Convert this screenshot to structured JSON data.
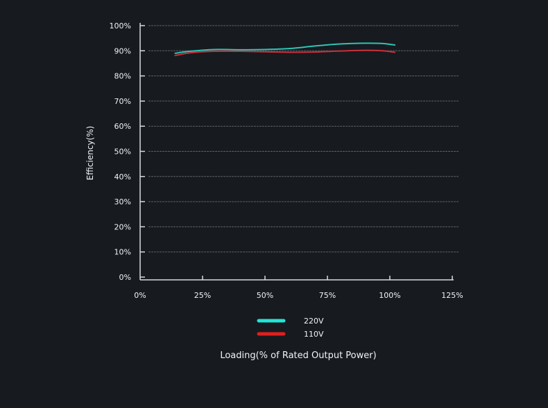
{
  "chart_data": {
    "type": "line",
    "title": "",
    "xlabel": "Loading(% of Rated Output Power)",
    "ylabel": "Efficiency(%)",
    "xlim": [
      0,
      125
    ],
    "ylim": [
      0,
      100
    ],
    "x_ticks": [
      0,
      25,
      50,
      75,
      100,
      125
    ],
    "x_tick_labels": [
      "0%",
      "25%",
      "50%",
      "75%",
      "100%",
      "125%"
    ],
    "y_ticks": [
      0,
      10,
      20,
      30,
      40,
      50,
      60,
      70,
      80,
      90,
      100
    ],
    "y_tick_labels": [
      "0%",
      "10%",
      "20%",
      "30%",
      "40%",
      "50%",
      "60%",
      "70%",
      "80%",
      "90%",
      "100%"
    ],
    "grid": true,
    "legend_position": "bottom-center",
    "series": [
      {
        "name": "220V",
        "color": "#2ec4b6",
        "legend_color": "#22e6d5",
        "x": [
          14,
          20,
          30,
          40,
          50,
          60,
          70,
          80,
          90,
          97,
          102
        ],
        "y": [
          89.0,
          89.8,
          90.5,
          90.4,
          90.5,
          90.9,
          91.9,
          92.7,
          93.0,
          92.9,
          92.3
        ]
      },
      {
        "name": "110V",
        "color": "#c8303a",
        "legend_color": "#e01e1e",
        "x": [
          14,
          20,
          30,
          40,
          50,
          60,
          70,
          80,
          90,
          97,
          102
        ],
        "y": [
          88.1,
          89.2,
          89.8,
          89.8,
          89.6,
          89.4,
          89.5,
          89.9,
          90.2,
          90.0,
          89.4
        ]
      }
    ]
  }
}
